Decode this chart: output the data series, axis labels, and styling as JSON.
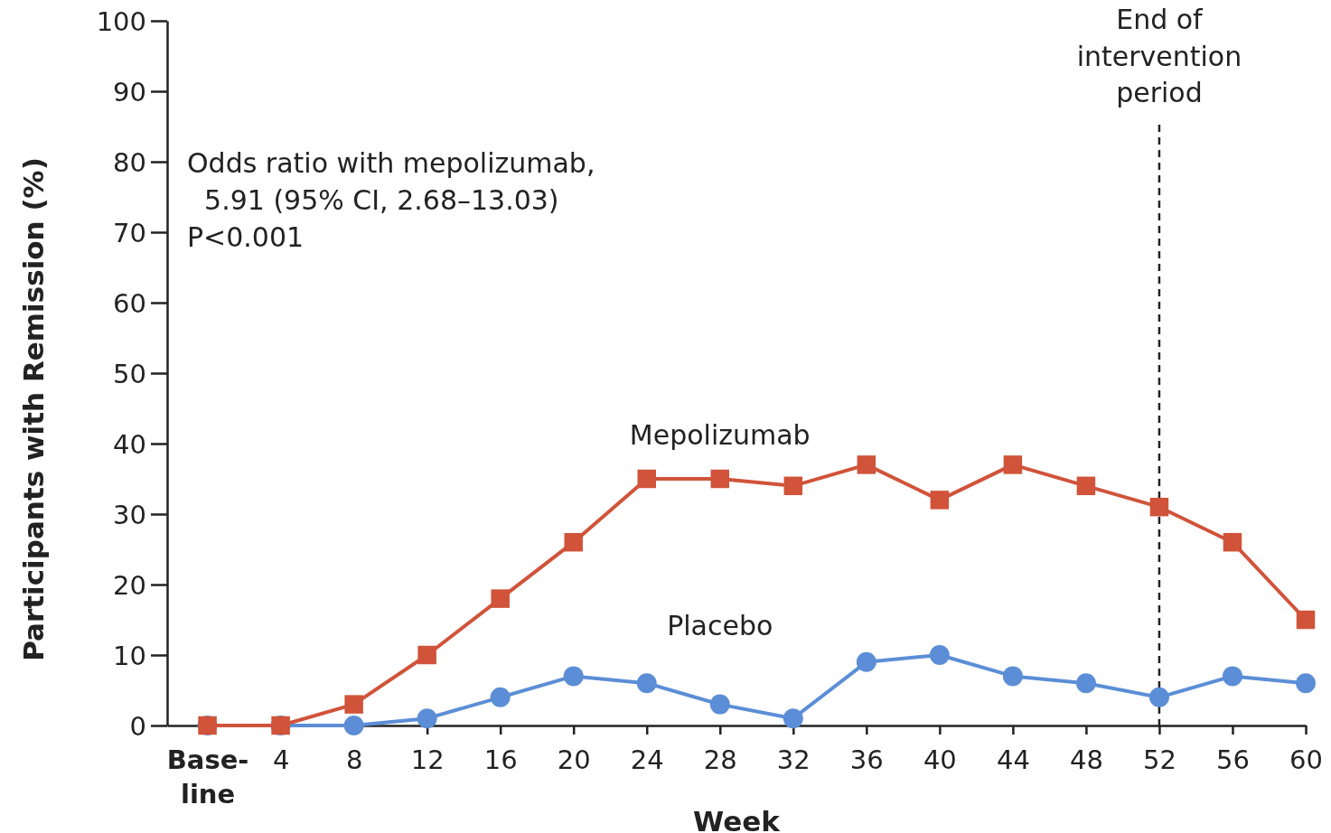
{
  "chart_data": {
    "type": "line",
    "xlabel": "Week",
    "ylabel": "Participants with Remission (%)",
    "x": [
      0,
      4,
      8,
      12,
      16,
      20,
      24,
      28,
      32,
      36,
      40,
      44,
      48,
      52,
      56,
      60
    ],
    "xlim": [
      -2.2,
      60
    ],
    "xticks": [
      {
        "value": 0,
        "label": "Base-\nline"
      },
      4,
      8,
      12,
      16,
      20,
      24,
      28,
      32,
      36,
      40,
      44,
      48,
      52,
      56,
      60
    ],
    "ylim": [
      0,
      100
    ],
    "yticks": [
      0,
      10,
      20,
      30,
      40,
      50,
      60,
      70,
      80,
      90,
      100
    ],
    "grid": false,
    "legend": false,
    "line_style": "solid",
    "series": [
      {
        "name": "Mepolizumab",
        "color": "#d0533a",
        "marker": "square",
        "values": [
          0,
          0,
          3,
          10,
          18,
          26,
          35,
          35,
          34,
          37,
          32,
          37,
          34,
          31,
          26,
          15
        ]
      },
      {
        "name": "Placebo",
        "color": "#5b8ed6",
        "marker": "circle",
        "values": [
          0,
          0,
          0,
          1,
          4,
          7,
          6,
          3,
          1,
          9,
          10,
          7,
          6,
          4,
          7,
          6
        ]
      }
    ],
    "ref_lines": [
      {
        "axis": "x",
        "value": 52,
        "label": "End of\nintervention\nperiod",
        "line_style": "dashed",
        "color": "#222222"
      }
    ],
    "annotations": [
      "Odds ratio with mepolizumab,",
      "  5.91 (95% CI, 2.68–13.03)",
      "P<0.001"
    ]
  }
}
